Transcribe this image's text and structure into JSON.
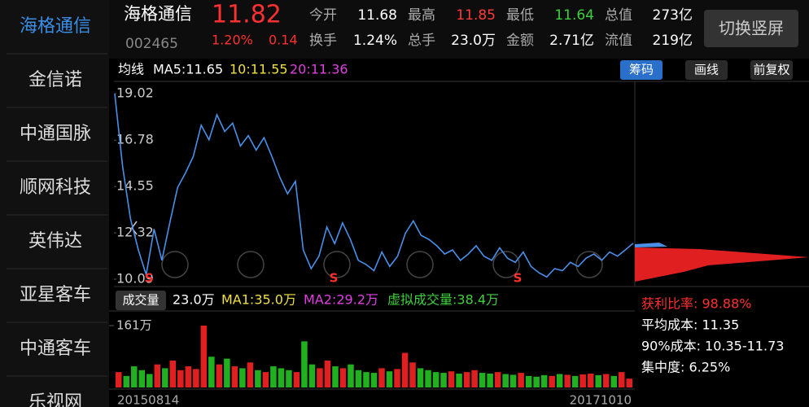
{
  "sidebar": {
    "items": [
      "海格通信",
      "金信诺",
      "中通国脉",
      "顺网科技",
      "英伟达",
      "亚星客车",
      "中通客车",
      "乐视网"
    ]
  },
  "header": {
    "name": "海格通信",
    "price": "11.82",
    "code": "002465",
    "change_pct": "1.20%",
    "change": "0.14",
    "stats": [
      {
        "label": "今开",
        "value": "11.68",
        "color": "#ffffff"
      },
      {
        "label": "最高",
        "value": "11.85",
        "color": "#ff3b3b"
      },
      {
        "label": "最低",
        "value": "11.64",
        "color": "#3bd13b"
      },
      {
        "label": "总值",
        "value": "273亿",
        "color": "#ffffff"
      },
      {
        "label": "换手",
        "value": "1.24%",
        "color": "#ffffff"
      },
      {
        "label": "总手",
        "value": "23.0万",
        "color": "#ffffff"
      },
      {
        "label": "金额",
        "value": "2.71亿",
        "color": "#ffffff"
      },
      {
        "label": "流值",
        "value": "219亿",
        "color": "#ffffff"
      }
    ],
    "button": "切换竖屏"
  },
  "ma_bar": {
    "label": "均线",
    "ma5": "MA5:11.65",
    "ma10": "10:11.55",
    "ma20": "20:11.36",
    "buttons": [
      "筹码",
      "画线",
      "前复权"
    ]
  },
  "price_chart": {
    "values": [
      19.0,
      15.5,
      13.0,
      11.5,
      10.3,
      12.5,
      11.0,
      12.8,
      14.5,
      15.2,
      16.0,
      17.5,
      16.8,
      18.0,
      17.2,
      17.6,
      16.5,
      17.0,
      16.3,
      16.9,
      16.0,
      15.0,
      14.2,
      14.8,
      11.5,
      10.6,
      11.2,
      12.6,
      11.8,
      12.8,
      12.0,
      11.0,
      10.8,
      10.5,
      11.4,
      10.7,
      11.2,
      12.3,
      12.9,
      12.2,
      12.0,
      11.7,
      11.3,
      11.5,
      11.0,
      11.3,
      11.7,
      11.2,
      11.0,
      11.6,
      11.1,
      10.9,
      11.4,
      10.7,
      10.4,
      10.2,
      10.6,
      10.5,
      10.9,
      10.7,
      11.1,
      11.3,
      11.0,
      11.4,
      11.2,
      11.5,
      11.82
    ],
    "color": "#4a8fe8",
    "ylim": [
      10.09,
      19.02
    ],
    "yticks": [
      10.09,
      12.32,
      14.55,
      16.78,
      19.02
    ],
    "signals": [
      "S",
      "S",
      "S"
    ]
  },
  "chips": {
    "profit": "获利比率: 98.88%",
    "avg_cost": "平均成本: 11.35",
    "cost90": "90%成本: 10.35-11.73",
    "concentration": "集中度: 6.25%"
  },
  "volume_bar": {
    "button": "成交量",
    "vol": "23.0万",
    "ma1": "MA1:35.0万",
    "ma2": "MA2:29.2万",
    "virtual": "虚拟成交量:38.4万"
  },
  "volume_chart": {
    "values": [
      40,
      30,
      55,
      45,
      35,
      60,
      50,
      70,
      45,
      55,
      48,
      161,
      80,
      60,
      75,
      55,
      50,
      65,
      45,
      40,
      55,
      50,
      45,
      40,
      120,
      60,
      50,
      70,
      55,
      50,
      60,
      45,
      40,
      38,
      50,
      42,
      48,
      90,
      65,
      50,
      45,
      40,
      38,
      42,
      36,
      40,
      45,
      38,
      36,
      40,
      35,
      33,
      38,
      30,
      28,
      32,
      30,
      35,
      33,
      30,
      34,
      36,
      32,
      35,
      30,
      40,
      23
    ],
    "ylim": [
      0,
      161
    ],
    "yticks": [
      {
        "value": 161,
        "label": "161万"
      }
    ],
    "start_date": "20150814",
    "end_date": "20171010"
  }
}
